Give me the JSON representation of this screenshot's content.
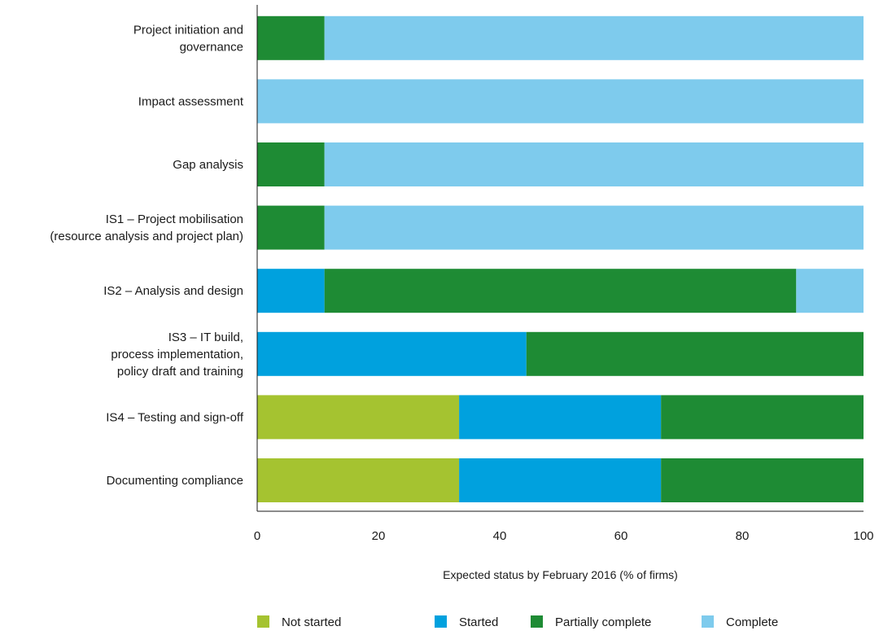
{
  "chart_data": {
    "type": "bar",
    "orientation": "horizontal",
    "stacked": true,
    "title": "",
    "xlabel": "Expected status by February 2016 (% of firms)",
    "ylabel": "",
    "xlim": [
      0,
      100
    ],
    "xticks": [
      0,
      20,
      40,
      60,
      80,
      100
    ],
    "grid": false,
    "legend_position": "bottom",
    "categories": [
      [
        "Project initiation and",
        "governance"
      ],
      [
        "Impact assessment"
      ],
      [
        "Gap analysis"
      ],
      [
        "IS1 – Project mobilisation",
        "(resource analysis and project plan)"
      ],
      [
        "IS2 – Analysis and design"
      ],
      [
        "IS3 – IT build,",
        "process implementation,",
        "policy draft and training"
      ],
      [
        "IS4 – Testing and sign-off"
      ],
      [
        "Documenting compliance"
      ]
    ],
    "series": [
      {
        "name": "Not started",
        "color": "#a5c330",
        "values": [
          0,
          0,
          0,
          0,
          0,
          0,
          33.3,
          33.3
        ]
      },
      {
        "name": "Started",
        "color": "#00a1de",
        "values": [
          0,
          0,
          0,
          0,
          11.1,
          44.4,
          33.3,
          33.3
        ]
      },
      {
        "name": "Partially complete",
        "color": "#1e8b34",
        "values": [
          11.1,
          0,
          11.1,
          11.1,
          77.8,
          55.6,
          33.4,
          33.4
        ]
      },
      {
        "name": "Complete",
        "color": "#7ecbed",
        "values": [
          88.9,
          100,
          88.9,
          88.9,
          11.1,
          0,
          0,
          0
        ]
      }
    ]
  }
}
